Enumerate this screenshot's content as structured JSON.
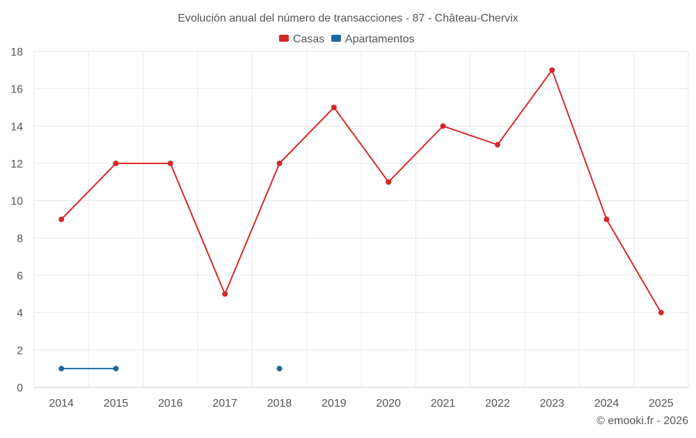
{
  "chart_data": {
    "type": "line",
    "title": "Evolución anual del número de transacciones - 87 - Château-Chervix",
    "categories": [
      "2014",
      "2015",
      "2016",
      "2017",
      "2018",
      "2019",
      "2020",
      "2021",
      "2022",
      "2023",
      "2024",
      "2025"
    ],
    "series": [
      {
        "name": "Casas",
        "color": "#d62728",
        "values": [
          9,
          12,
          12,
          5,
          12,
          15,
          11,
          14,
          13,
          17,
          9,
          4
        ]
      },
      {
        "name": "Apartamentos",
        "color": "#1f77b4",
        "values": [
          1,
          1,
          null,
          null,
          1,
          null,
          null,
          null,
          null,
          null,
          null,
          null
        ]
      }
    ],
    "ylim": [
      0,
      18
    ],
    "yticks": [
      0,
      2,
      4,
      6,
      8,
      10,
      12,
      14,
      16,
      18
    ],
    "xlabel": "",
    "ylabel": "",
    "grid": true,
    "legend_position": "top-center"
  },
  "footer": {
    "credit": "© emooki.fr - 2026"
  },
  "colors": {
    "grid": "#e8e8e8",
    "axis": "#cccccc",
    "text": "#555555",
    "casas": "#d62728",
    "apartamentos": "#1a6aa0"
  }
}
